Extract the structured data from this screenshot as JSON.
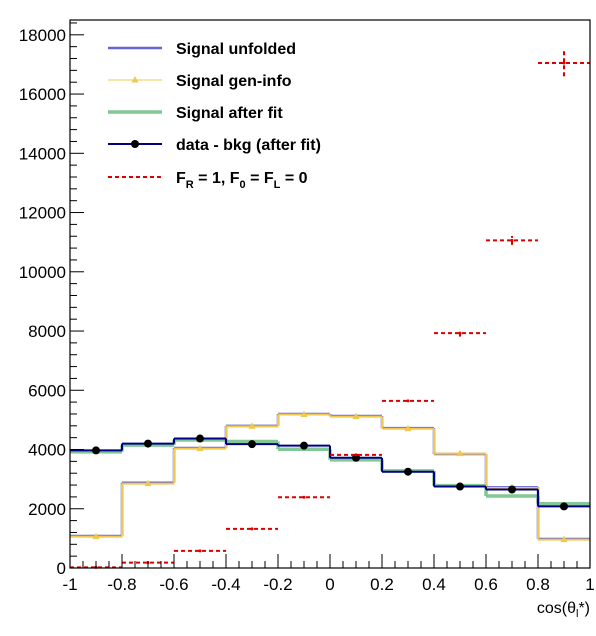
{
  "chart_data": {
    "type": "line",
    "title": "",
    "xlabel": "cos(θ<sub>l</sub>*)",
    "ylabel": "",
    "xlim": [
      -1,
      1
    ],
    "ylim": [
      0,
      18500
    ],
    "grid": false,
    "legend_position": "top-left",
    "x_ticks": [
      "-1",
      "-0.8",
      "-0.6",
      "-0.4",
      "-0.2",
      "0",
      "0.2",
      "0.4",
      "0.6",
      "0.8",
      "1"
    ],
    "y_ticks": [
      "0",
      "2000",
      "4000",
      "6000",
      "8000",
      "10000",
      "12000",
      "14000",
      "16000",
      "18000"
    ],
    "bin_edges": [
      -1,
      -0.8,
      -0.6,
      -0.4,
      -0.2,
      0,
      0.2,
      0.4,
      0.6,
      0.8,
      1
    ],
    "bin_centers": [
      -0.9,
      -0.7,
      -0.5,
      -0.3,
      -0.1,
      0.1,
      0.3,
      0.5,
      0.7,
      0.9
    ],
    "series": [
      {
        "name": "Signal unfolded",
        "style": "hist",
        "color": "#6464d2",
        "values": [
          1080,
          2880,
          4050,
          4800,
          5200,
          5130,
          4720,
          3850,
          2720,
          980
        ]
      },
      {
        "name": "Signal gen-info",
        "style": "hist-markers",
        "color": "#f0c850",
        "values": [
          1060,
          2850,
          4030,
          4780,
          5180,
          5110,
          4700,
          3860,
          2700,
          960
        ]
      },
      {
        "name": "Signal after fit",
        "style": "hist",
        "color": "#82c896",
        "values": [
          3920,
          4150,
          4320,
          4270,
          4010,
          3650,
          3280,
          2780,
          2430,
          2170
        ]
      },
      {
        "name": "data - bkg (after fit)",
        "style": "hist-points",
        "color": "#000080",
        "values": [
          3970,
          4200,
          4370,
          4180,
          4130,
          3720,
          3250,
          2750,
          2650,
          2080
        ]
      },
      {
        "name": "F_R = 1, F_0 = F_L = 0",
        "style": "dashed-errors",
        "color": "#dc0000",
        "values": [
          20,
          180,
          580,
          1320,
          2390,
          3820,
          5640,
          7930,
          11060,
          17050
        ],
        "errors": [
          0,
          0,
          0,
          0,
          0,
          0,
          0,
          120,
          150,
          450
        ]
      }
    ]
  },
  "legend": {
    "items": [
      {
        "parts": [
          "Signal unfolded"
        ]
      },
      {
        "parts": [
          "Signal gen-info"
        ]
      },
      {
        "parts": [
          "Signal after fit"
        ]
      },
      {
        "parts": [
          "data - bkg (after fit)"
        ]
      },
      {
        "parts": [
          "F",
          "R",
          " = 1, F",
          "0",
          " = F",
          "L",
          " = 0"
        ]
      }
    ]
  },
  "axis_title_parts": [
    "cos(θ",
    "l",
    "*)"
  ]
}
